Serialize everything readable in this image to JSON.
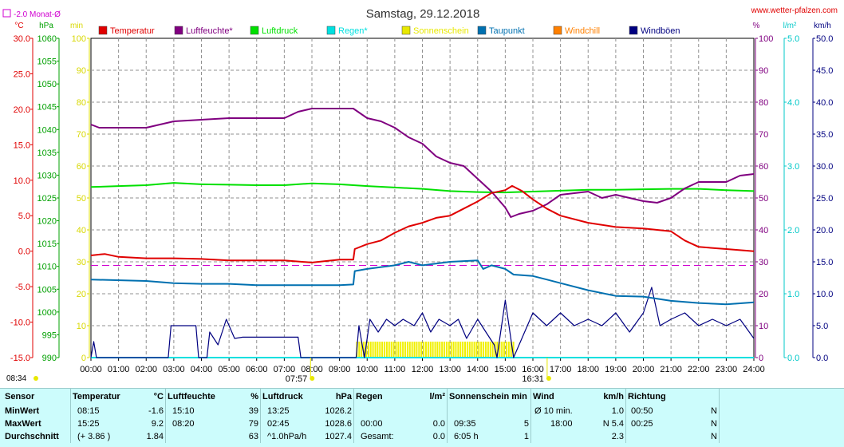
{
  "header": {
    "title": "Samstag, 29.12.2018",
    "website": "www.wetter-pfalzen.com",
    "avg_line_label": "-2.0 Monat-Ø"
  },
  "chart_data": {
    "type": "line",
    "title": "Samstag, 29.12.2018",
    "x_ticks": [
      "00:00",
      "01:00",
      "02:00",
      "03:00",
      "04:00",
      "05:00",
      "06:00",
      "07:00",
      "08:00",
      "09:00",
      "10:00",
      "11:00",
      "12:00",
      "13:00",
      "14:00",
      "15:00",
      "16:00",
      "17:00",
      "18:00",
      "19:00",
      "20:00",
      "21:00",
      "22:00",
      "23:00",
      "24:00"
    ],
    "axes": {
      "temperature": {
        "unit": "°C",
        "range": [
          -15,
          30
        ],
        "ticks": [
          "30.0",
          "25.0",
          "20.0",
          "15.0",
          "10.0",
          "5.0",
          "0.0",
          "-5.0",
          "-10.0",
          "-15.0"
        ]
      },
      "pressure": {
        "unit": "hPa",
        "range": [
          990,
          1060
        ],
        "ticks": [
          "1060",
          "1055",
          "1050",
          "1045",
          "1040",
          "1035",
          "1030",
          "1025",
          "1020",
          "1015",
          "1010",
          "1005",
          "1000",
          "995",
          "990"
        ]
      },
      "sunshine": {
        "unit": "min",
        "range": [
          0,
          100
        ],
        "ticks": [
          "100",
          "90",
          "80",
          "70",
          "60",
          "50",
          "40",
          "30",
          "20",
          "10",
          "0"
        ]
      },
      "humidity": {
        "unit": "%",
        "range": [
          0,
          100
        ],
        "ticks": [
          "100",
          "90",
          "80",
          "70",
          "60",
          "50",
          "40",
          "30",
          "20",
          "10",
          "0"
        ]
      },
      "rain": {
        "unit": "l/m²",
        "range": [
          0,
          5
        ],
        "ticks": [
          "5.0",
          "4.0",
          "3.0",
          "2.0",
          "1.0",
          "0.0"
        ]
      },
      "wind": {
        "unit": "km/h",
        "range": [
          0,
          50
        ],
        "ticks": [
          "50.0",
          "45.0",
          "40.0",
          "35.0",
          "30.0",
          "25.0",
          "20.0",
          "15.0",
          "10.0",
          "5.0",
          "0.0"
        ]
      }
    },
    "legend": [
      {
        "name": "Temperatur",
        "color": "#e00000"
      },
      {
        "name": "Luftfeuchte*",
        "color": "#800080"
      },
      {
        "name": "Luftdruck",
        "color": "#00e000"
      },
      {
        "name": "Regen*",
        "color": "#00e0e0"
      },
      {
        "name": "Sonnenschein",
        "color": "#e8e800"
      },
      {
        "name": "Taupunkt",
        "color": "#0070b0"
      },
      {
        "name": "Windchill",
        "color": "#ff8000"
      },
      {
        "name": "Windböen",
        "color": "#000080"
      }
    ],
    "monthly_avg_temperature": -2.0,
    "sunrise": "07:57",
    "sunset": "16:31",
    "moon_time": "08:34",
    "series": {
      "temperature": [
        [
          0,
          -0.6
        ],
        [
          0.5,
          -0.4
        ],
        [
          1,
          -0.8
        ],
        [
          2,
          -1.0
        ],
        [
          3,
          -1.0
        ],
        [
          4,
          -1.1
        ],
        [
          5,
          -1.3
        ],
        [
          6,
          -1.3
        ],
        [
          7,
          -1.3
        ],
        [
          8,
          -1.6
        ],
        [
          9,
          -1.2
        ],
        [
          9.5,
          -1.2
        ],
        [
          9.55,
          0.3
        ],
        [
          10,
          1.0
        ],
        [
          10.5,
          1.5
        ],
        [
          11,
          2.6
        ],
        [
          11.5,
          3.5
        ],
        [
          12,
          4.0
        ],
        [
          12.5,
          4.7
        ],
        [
          13,
          5.0
        ],
        [
          13.5,
          6.0
        ],
        [
          14,
          7.0
        ],
        [
          14.5,
          8.2
        ],
        [
          15,
          8.6
        ],
        [
          15.25,
          9.2
        ],
        [
          15.6,
          8.5
        ],
        [
          16,
          7.3
        ],
        [
          16.5,
          6.0
        ],
        [
          17,
          5.0
        ],
        [
          18,
          4.0
        ],
        [
          19,
          3.4
        ],
        [
          20,
          3.2
        ],
        [
          21,
          2.8
        ],
        [
          21.5,
          1.5
        ],
        [
          22,
          0.6
        ],
        [
          23,
          0.3
        ],
        [
          24,
          0.0
        ]
      ],
      "humidity": [
        [
          0,
          73
        ],
        [
          0.3,
          72
        ],
        [
          1,
          72
        ],
        [
          2,
          72
        ],
        [
          2.5,
          73
        ],
        [
          3,
          74
        ],
        [
          4,
          74.5
        ],
        [
          5,
          75
        ],
        [
          6,
          75
        ],
        [
          7,
          75
        ],
        [
          7.5,
          77
        ],
        [
          8,
          78
        ],
        [
          9,
          78
        ],
        [
          9.5,
          78
        ],
        [
          10,
          75
        ],
        [
          10.5,
          74
        ],
        [
          11,
          72
        ],
        [
          11.5,
          69
        ],
        [
          12,
          67
        ],
        [
          12.5,
          63
        ],
        [
          13,
          61
        ],
        [
          13.5,
          60
        ],
        [
          14,
          56
        ],
        [
          14.5,
          52
        ],
        [
          15,
          47
        ],
        [
          15.2,
          44
        ],
        [
          15.5,
          45
        ],
        [
          16,
          46
        ],
        [
          16.5,
          48
        ],
        [
          17,
          51
        ],
        [
          18,
          52
        ],
        [
          18.5,
          50
        ],
        [
          19,
          51
        ],
        [
          19.5,
          50
        ],
        [
          20,
          49
        ],
        [
          20.5,
          48.5
        ],
        [
          21,
          50
        ],
        [
          21.5,
          53
        ],
        [
          22,
          55
        ],
        [
          23,
          55
        ],
        [
          23.5,
          57
        ],
        [
          24,
          57.5
        ]
      ],
      "pressure": [
        [
          0,
          1027.4
        ],
        [
          1,
          1027.6
        ],
        [
          2,
          1027.8
        ],
        [
          3,
          1028.3
        ],
        [
          4,
          1028.0
        ],
        [
          5,
          1027.9
        ],
        [
          6,
          1027.8
        ],
        [
          7,
          1027.8
        ],
        [
          8,
          1028.2
        ],
        [
          9,
          1028.0
        ],
        [
          10,
          1027.6
        ],
        [
          11,
          1027.3
        ],
        [
          12,
          1027.0
        ],
        [
          13,
          1026.5
        ],
        [
          14,
          1026.3
        ],
        [
          15,
          1026.2
        ],
        [
          16,
          1026.4
        ],
        [
          17,
          1026.6
        ],
        [
          18,
          1026.8
        ],
        [
          19,
          1026.8
        ],
        [
          20,
          1026.9
        ],
        [
          21,
          1027.0
        ],
        [
          22,
          1027.0
        ],
        [
          23,
          1026.7
        ],
        [
          24,
          1026.5
        ]
      ],
      "dewpoint": [
        [
          0,
          -4.0
        ],
        [
          2,
          -4.2
        ],
        [
          3,
          -4.5
        ],
        [
          4,
          -4.6
        ],
        [
          5,
          -4.6
        ],
        [
          6,
          -4.8
        ],
        [
          7,
          -4.8
        ],
        [
          8,
          -4.8
        ],
        [
          9,
          -4.8
        ],
        [
          9.5,
          -4.7
        ],
        [
          9.55,
          -2.8
        ],
        [
          10,
          -2.5
        ],
        [
          11,
          -2.0
        ],
        [
          11.5,
          -1.5
        ],
        [
          12,
          -2.0
        ],
        [
          13,
          -1.5
        ],
        [
          14,
          -1.3
        ],
        [
          14.2,
          -2.5
        ],
        [
          14.5,
          -2.0
        ],
        [
          15,
          -2.5
        ],
        [
          15.3,
          -3.3
        ],
        [
          16,
          -3.5
        ],
        [
          16.5,
          -4.0
        ],
        [
          17,
          -4.5
        ],
        [
          18,
          -5.5
        ],
        [
          19,
          -6.3
        ],
        [
          20,
          -6.4
        ],
        [
          21,
          -7.0
        ],
        [
          22,
          -7.3
        ],
        [
          23,
          -7.5
        ],
        [
          24,
          -7.2
        ]
      ],
      "wind_gusts": [
        [
          0,
          0
        ],
        [
          0.1,
          2.5
        ],
        [
          0.2,
          0
        ],
        [
          2.8,
          0
        ],
        [
          2.9,
          5
        ],
        [
          3.8,
          5
        ],
        [
          3.9,
          0
        ],
        [
          4.2,
          0
        ],
        [
          4.3,
          4
        ],
        [
          4.6,
          2
        ],
        [
          4.9,
          6
        ],
        [
          5.2,
          3
        ],
        [
          5.5,
          3.2
        ],
        [
          7.5,
          3.2
        ],
        [
          7.6,
          0
        ],
        [
          9.6,
          0
        ],
        [
          9.7,
          5
        ],
        [
          9.9,
          0
        ],
        [
          10.1,
          6
        ],
        [
          10.4,
          4
        ],
        [
          10.7,
          6
        ],
        [
          11,
          5
        ],
        [
          11.3,
          6
        ],
        [
          11.7,
          5
        ],
        [
          12,
          7
        ],
        [
          12.3,
          4
        ],
        [
          12.6,
          6
        ],
        [
          13,
          5
        ],
        [
          13.3,
          6
        ],
        [
          13.6,
          3
        ],
        [
          14,
          6
        ],
        [
          14.3,
          4
        ],
        [
          14.6,
          2
        ],
        [
          14.7,
          0
        ],
        [
          15,
          9
        ],
        [
          15.3,
          0
        ],
        [
          16,
          7
        ],
        [
          16.5,
          5
        ],
        [
          17,
          7
        ],
        [
          17.5,
          5
        ],
        [
          18,
          6
        ],
        [
          18.5,
          5
        ],
        [
          19,
          7
        ],
        [
          19.5,
          4
        ],
        [
          20,
          7
        ],
        [
          20.3,
          11
        ],
        [
          20.6,
          5
        ],
        [
          21,
          6
        ],
        [
          21.5,
          7
        ],
        [
          22,
          5
        ],
        [
          22.5,
          6
        ],
        [
          23,
          5
        ],
        [
          23.5,
          6
        ],
        [
          24,
          3
        ]
      ],
      "sunshine_minutes": [
        [
          9.6,
          5
        ],
        [
          15.3,
          5
        ]
      ],
      "rain": [
        [
          0,
          0
        ],
        [
          24,
          0
        ]
      ]
    }
  },
  "stats": {
    "headers": {
      "sensor": "Sensor",
      "temperature": "Temperatur",
      "temperature_unit": "°C",
      "humidity": "Luftfeuchte",
      "humidity_unit": "%",
      "pressure": "Luftdruck",
      "pressure_unit": "hPa",
      "rain": "Regen",
      "rain_unit": "l/m²",
      "sunshine": "Sonnenschein min",
      "wind": "Wind",
      "wind_unit": "km/h",
      "direction": "Richtung"
    },
    "rows": [
      {
        "label": "MinWert",
        "t_time": "08:15",
        "t_val": "-1.6",
        "h_time": "15:10",
        "h_val": "39",
        "p_time": "13:25",
        "p_val": "1026.2",
        "r_time": "",
        "r_val": "",
        "s_time": "",
        "s_val": "",
        "w_time": "Ø 10 min.",
        "w_val": "1.0",
        "d_time": "00:50",
        "d_val": "N"
      },
      {
        "label": "MaxWert",
        "t_time": "15:25",
        "t_val": "9.2",
        "h_time": "08:20",
        "h_val": "79",
        "p_time": "02:45",
        "p_val": "1028.6",
        "r_time": "00:00",
        "r_val": "0.0",
        "s_time": "09:35",
        "s_val": "5",
        "w_time": "18:00",
        "w_val": "N 5.4",
        "d_time": "00:25",
        "d_val": "N"
      },
      {
        "label": "Durchschnitt",
        "t_time": "(+ 3.86 )",
        "t_val": "1.84",
        "h_time": "",
        "h_val": "63",
        "p_time": "^1.0hPa/h",
        "p_val": "1027.4",
        "r_time": "Gesamt:",
        "r_val": "0.0",
        "s_time": "6:05 h",
        "s_val": "1",
        "w_time": "",
        "w_val": "2.3",
        "d_time": "",
        "d_val": "N"
      }
    ]
  }
}
